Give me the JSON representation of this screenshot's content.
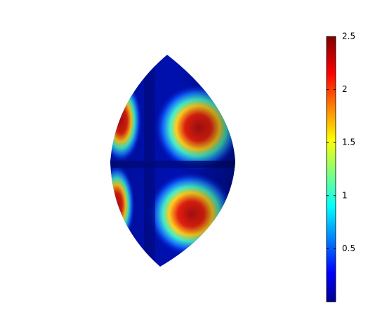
{
  "chart_data": {
    "type": "surface",
    "colormap": "jet",
    "clim": [
      0,
      2.5
    ],
    "cticks": [
      0.5,
      1,
      1.5,
      2,
      2.5
    ]
  }
}
